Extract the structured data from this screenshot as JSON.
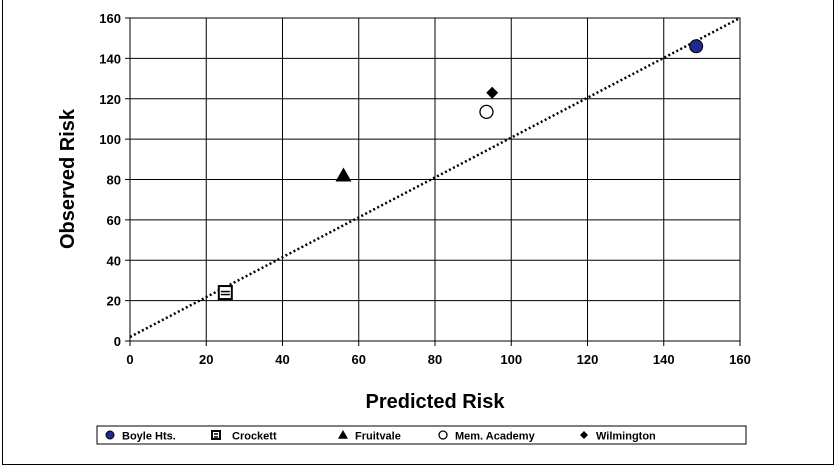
{
  "chart_data": {
    "type": "scatter",
    "title": "",
    "xlabel": "Predicted Risk",
    "ylabel": "Observed Risk",
    "xlim": [
      0,
      160
    ],
    "ylim": [
      0,
      160
    ],
    "x_ticks": [
      0,
      20,
      40,
      60,
      80,
      100,
      120,
      140,
      160
    ],
    "y_ticks": [
      0,
      20,
      40,
      60,
      80,
      100,
      120,
      140,
      160
    ],
    "grid": true,
    "legend_position": "bottom",
    "reference_line": {
      "style": "dotted",
      "color": "#000000",
      "points": [
        [
          0,
          2
        ],
        [
          160,
          160
        ]
      ]
    },
    "series": [
      {
        "name": "Boyle Hts.",
        "marker": "circle-filled",
        "color": "#1f2a8c",
        "points": [
          [
            148.5,
            146
          ]
        ]
      },
      {
        "name": "Crockett",
        "marker": "square-hatched",
        "color": "#000000",
        "points": [
          [
            25,
            24
          ]
        ]
      },
      {
        "name": "Fruitvale",
        "marker": "triangle",
        "color": "#000000",
        "points": [
          [
            56,
            82
          ]
        ]
      },
      {
        "name": "Mem. Academy",
        "marker": "circle-open",
        "color": "#000000",
        "points": [
          [
            93.5,
            113.5
          ]
        ]
      },
      {
        "name": "Wilmington",
        "marker": "diamond",
        "color": "#000000",
        "points": [
          [
            95,
            123
          ]
        ]
      }
    ]
  }
}
